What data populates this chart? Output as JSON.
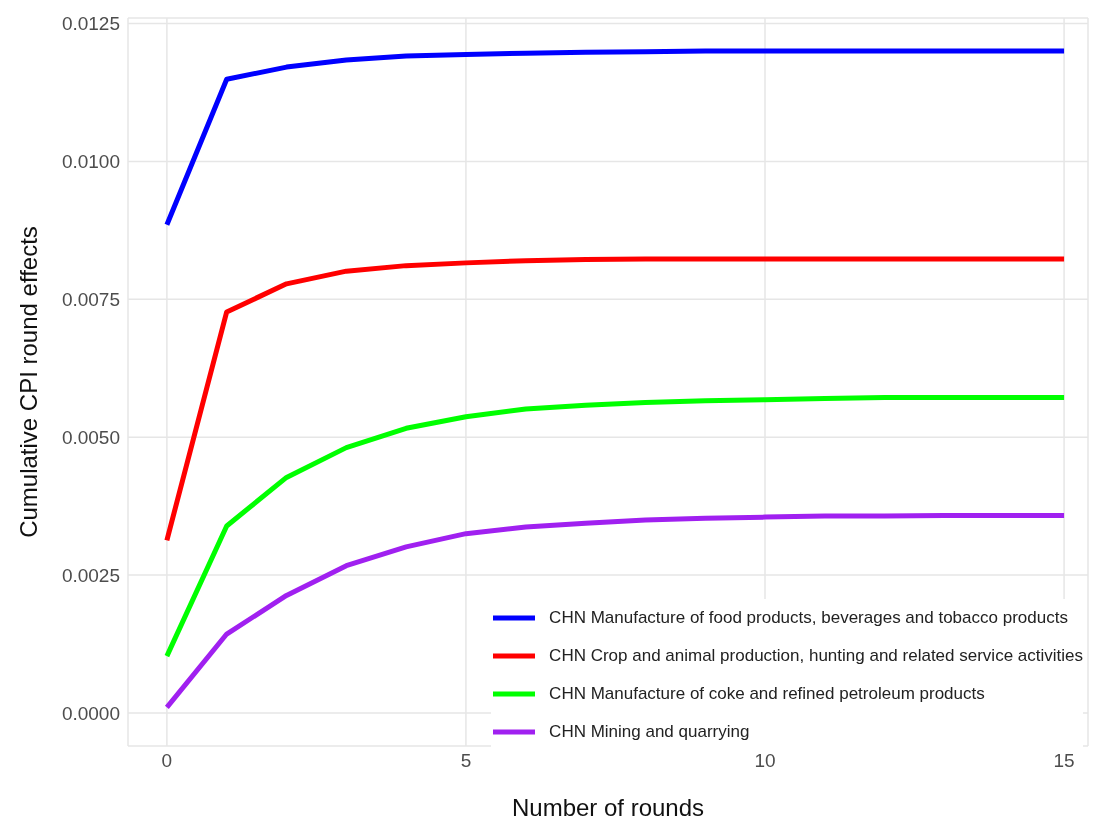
{
  "chart_data": {
    "type": "line",
    "xlabel": "Number of rounds",
    "ylabel": "Cumulative CPI round effects",
    "x": [
      0,
      1,
      2,
      3,
      4,
      5,
      6,
      7,
      8,
      9,
      10,
      11,
      12,
      13,
      14,
      15
    ],
    "series": [
      {
        "name": "CHN Manufacture of food products, beverages and tobacco products",
        "color": "#0000ff",
        "values": [
          0.00885,
          0.01149,
          0.01171,
          0.01184,
          0.01191,
          0.01194,
          0.01196,
          0.01198,
          0.01199,
          0.012,
          0.012,
          0.012,
          0.012,
          0.012,
          0.012,
          0.012
        ]
      },
      {
        "name": "CHN Crop and animal production, hunting and related service activities",
        "color": "#ff0000",
        "values": [
          0.00313,
          0.00727,
          0.00778,
          0.00801,
          0.00811,
          0.00816,
          0.0082,
          0.00822,
          0.00823,
          0.00823,
          0.00823,
          0.00823,
          0.00823,
          0.00823,
          0.00823,
          0.00823
        ]
      },
      {
        "name": "CHN Manufacture of coke and refined petroleum products",
        "color": "#00ff00",
        "values": [
          0.00103,
          0.00339,
          0.00427,
          0.00481,
          0.00516,
          0.00537,
          0.00551,
          0.00558,
          0.00563,
          0.00566,
          0.00568,
          0.0057,
          0.00572,
          0.00572,
          0.00572,
          0.00572
        ]
      },
      {
        "name": "CHN Mining and quarrying",
        "color": "#a020f0",
        "values": [
          0.0001,
          0.00143,
          0.00213,
          0.00267,
          0.00301,
          0.00325,
          0.00337,
          0.00344,
          0.0035,
          0.00353,
          0.00355,
          0.00357,
          0.00357,
          0.00358,
          0.00358,
          0.00358
        ]
      }
    ],
    "xlim": [
      -0.65,
      15.4
    ],
    "xticks": [
      0,
      5,
      10,
      15
    ],
    "ylim": [
      -0.0006,
      0.0126
    ],
    "yticks": [
      {
        "value": 0,
        "label": "0.0000"
      },
      {
        "value": 0.0025,
        "label": "0.0025"
      },
      {
        "value": 0.005,
        "label": "0.0050"
      },
      {
        "value": 0.0075,
        "label": "0.0075"
      },
      {
        "value": 0.01,
        "label": "0.0100"
      },
      {
        "value": 0.0125,
        "label": "0.0125"
      }
    ],
    "grid": true,
    "legend": "bottom right",
    "marker": "none",
    "line_style": "solid"
  }
}
